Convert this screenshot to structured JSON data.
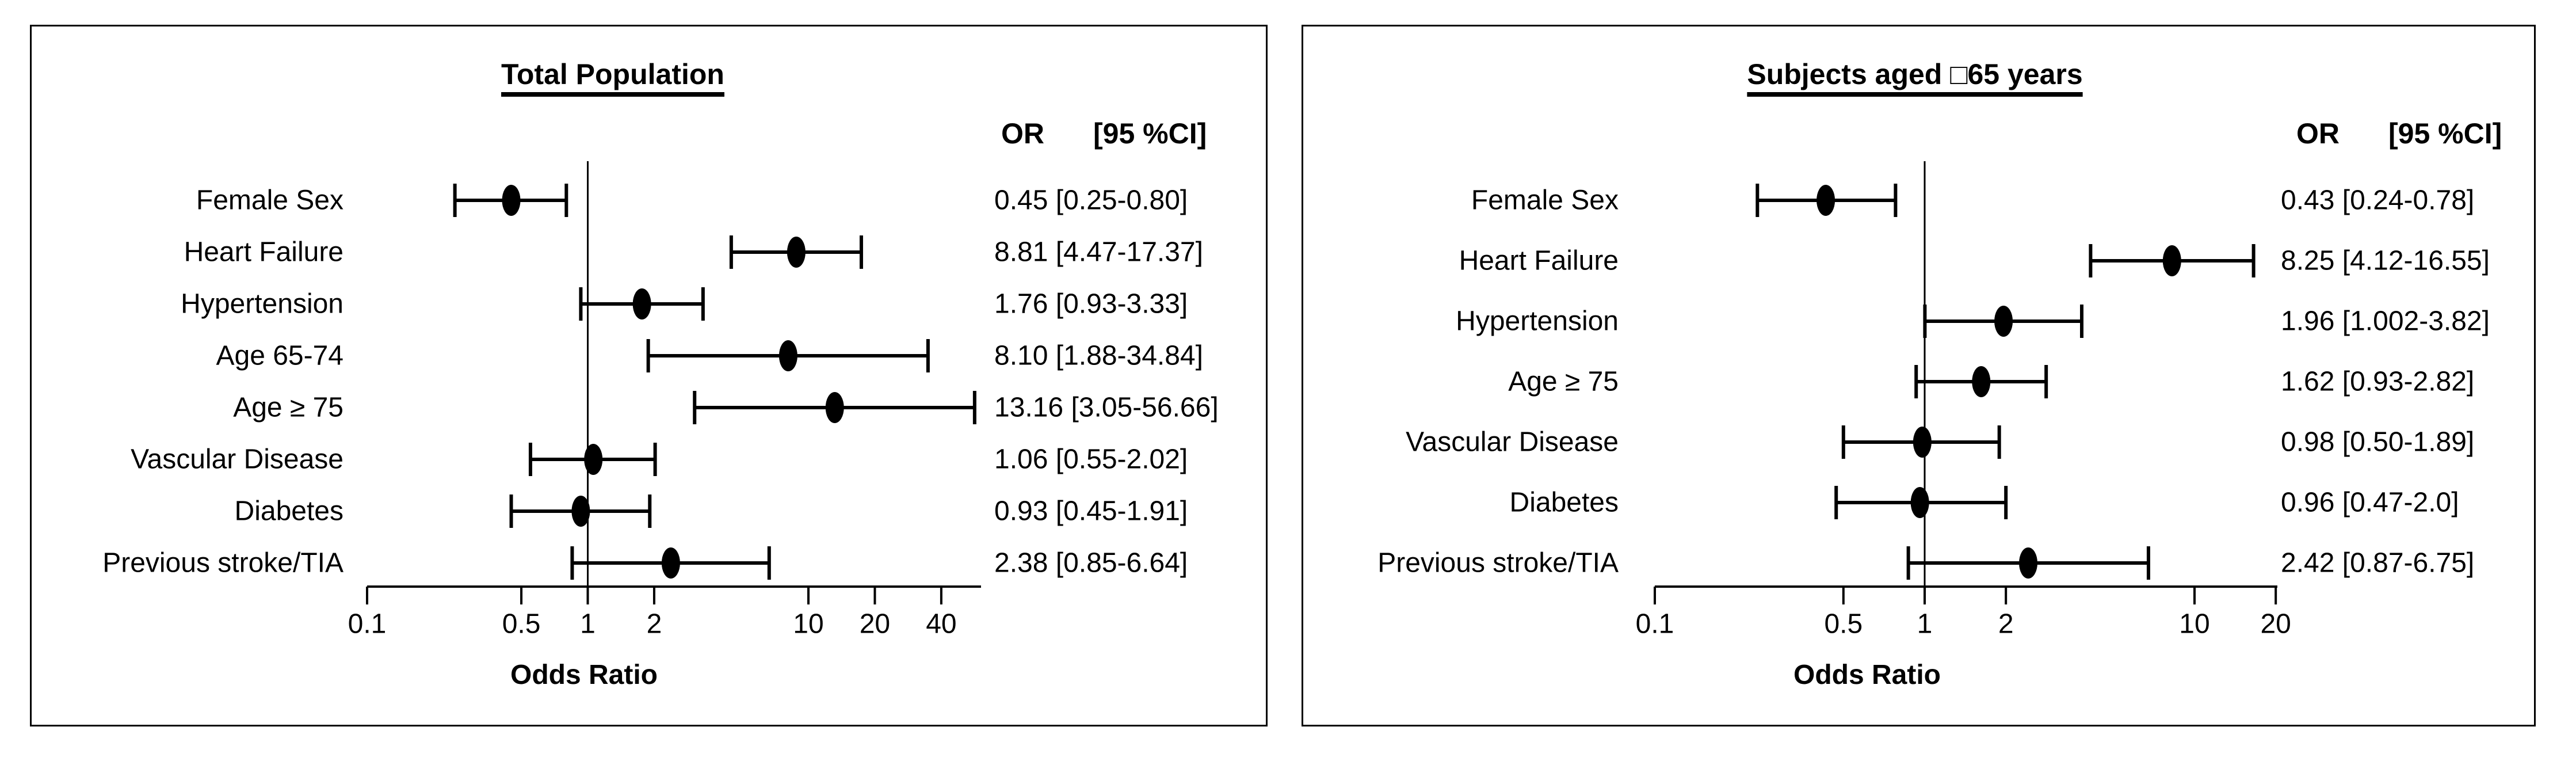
{
  "colors": {
    "ink": "#000000",
    "background": "#ffffff"
  },
  "chart_data": [
    {
      "type": "scatter",
      "subtype": "forest_plot",
      "title": "Total Population",
      "col_header": {
        "or": "OR",
        "ci": "[95 %CI]"
      },
      "xlabel": "Odds Ratio",
      "xscale": "log",
      "xlim": [
        0.1,
        60
      ],
      "ref_line": 1,
      "grid": false,
      "legend": "none",
      "xticks": [
        "0.1",
        "0.5",
        "1",
        "2",
        "10",
        "20",
        "40"
      ],
      "rows": [
        {
          "label": "Female Sex",
          "or": 0.45,
          "ci_low": 0.25,
          "ci_high": 0.8,
          "value_text": "0.45 [0.25-0.80]"
        },
        {
          "label": "Heart Failure",
          "or": 8.81,
          "ci_low": 4.47,
          "ci_high": 17.37,
          "value_text": "8.81 [4.47-17.37]"
        },
        {
          "label": "Hypertension",
          "or": 1.76,
          "ci_low": 0.93,
          "ci_high": 3.33,
          "value_text": "1.76 [0.93-3.33]"
        },
        {
          "label": "Age 65-74",
          "or": 8.1,
          "ci_low": 1.88,
          "ci_high": 34.84,
          "value_text": "8.10 [1.88-34.84]"
        },
        {
          "label": "Age ≥ 75",
          "or": 13.16,
          "ci_low": 3.05,
          "ci_high": 56.66,
          "value_text": "13.16 [3.05-56.66]"
        },
        {
          "label": "Vascular Disease",
          "or": 1.06,
          "ci_low": 0.55,
          "ci_high": 2.02,
          "value_text": "1.06 [0.55-2.02]"
        },
        {
          "label": "Diabetes",
          "or": 0.93,
          "ci_low": 0.45,
          "ci_high": 1.91,
          "value_text": "0.93 [0.45-1.91]"
        },
        {
          "label": "Previous stroke/TIA",
          "or": 2.38,
          "ci_low": 0.85,
          "ci_high": 6.64,
          "value_text": "2.38 [0.85-6.64]"
        }
      ]
    },
    {
      "type": "scatter",
      "subtype": "forest_plot",
      "title": "Subjects aged □65 years",
      "col_header": {
        "or": "OR",
        "ci": "[95 %CI]"
      },
      "xlabel": "Odds Ratio",
      "xscale": "log",
      "xlim": [
        0.1,
        20
      ],
      "ref_line": 1,
      "grid": false,
      "legend": "none",
      "xticks": [
        "0.1",
        "0.5",
        "1",
        "2",
        "10",
        "20"
      ],
      "rows": [
        {
          "label": "Female Sex",
          "or": 0.43,
          "ci_low": 0.24,
          "ci_high": 0.78,
          "value_text": "0.43 [0.24-0.78]"
        },
        {
          "label": "Heart Failure",
          "or": 8.25,
          "ci_low": 4.12,
          "ci_high": 16.55,
          "value_text": "8.25 [4.12-16.55]"
        },
        {
          "label": "Hypertension",
          "or": 1.96,
          "ci_low": 1.002,
          "ci_high": 3.82,
          "value_text": "1.96 [1.002-3.82]"
        },
        {
          "label": "Age ≥ 75",
          "or": 1.62,
          "ci_low": 0.93,
          "ci_high": 2.82,
          "value_text": "1.62 [0.93-2.82]"
        },
        {
          "label": "Vascular Disease",
          "or": 0.98,
          "ci_low": 0.5,
          "ci_high": 1.89,
          "value_text": "0.98 [0.50-1.89]"
        },
        {
          "label": "Diabetes",
          "or": 0.96,
          "ci_low": 0.47,
          "ci_high": 2.0,
          "value_text": "0.96 [0.47-2.0]"
        },
        {
          "label": "Previous stroke/TIA",
          "or": 2.42,
          "ci_low": 0.87,
          "ci_high": 6.75,
          "value_text": "2.42 [0.87-6.75]"
        }
      ]
    }
  ]
}
